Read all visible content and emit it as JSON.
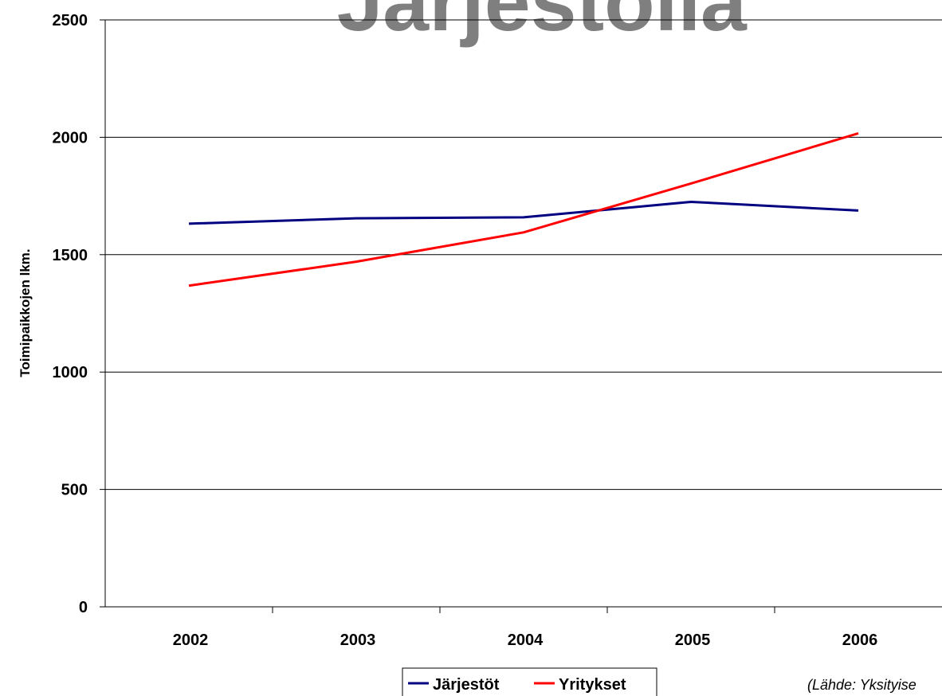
{
  "chart_data": {
    "type": "line",
    "title": "Järjestöllä",
    "xlabel": "",
    "ylabel": "Toimipaikkojen lkm.",
    "categories": [
      "2002",
      "2003",
      "2004",
      "2005",
      "2006"
    ],
    "series": [
      {
        "name": "Järjestöt",
        "values": [
          1632,
          1655,
          1659,
          1725,
          1688
        ],
        "color": "#000080"
      },
      {
        "name": "Yritykset",
        "values": [
          1368,
          1470,
          1595,
          1803,
          2017
        ],
        "color": "#ff0000"
      }
    ],
    "ylim": [
      0,
      2500
    ],
    "yticks": [
      "0",
      "500",
      "1000",
      "1500",
      "2000",
      "2500"
    ],
    "grid": true,
    "legend": "bottom-center",
    "source": "(Lähde: Yksityise"
  }
}
